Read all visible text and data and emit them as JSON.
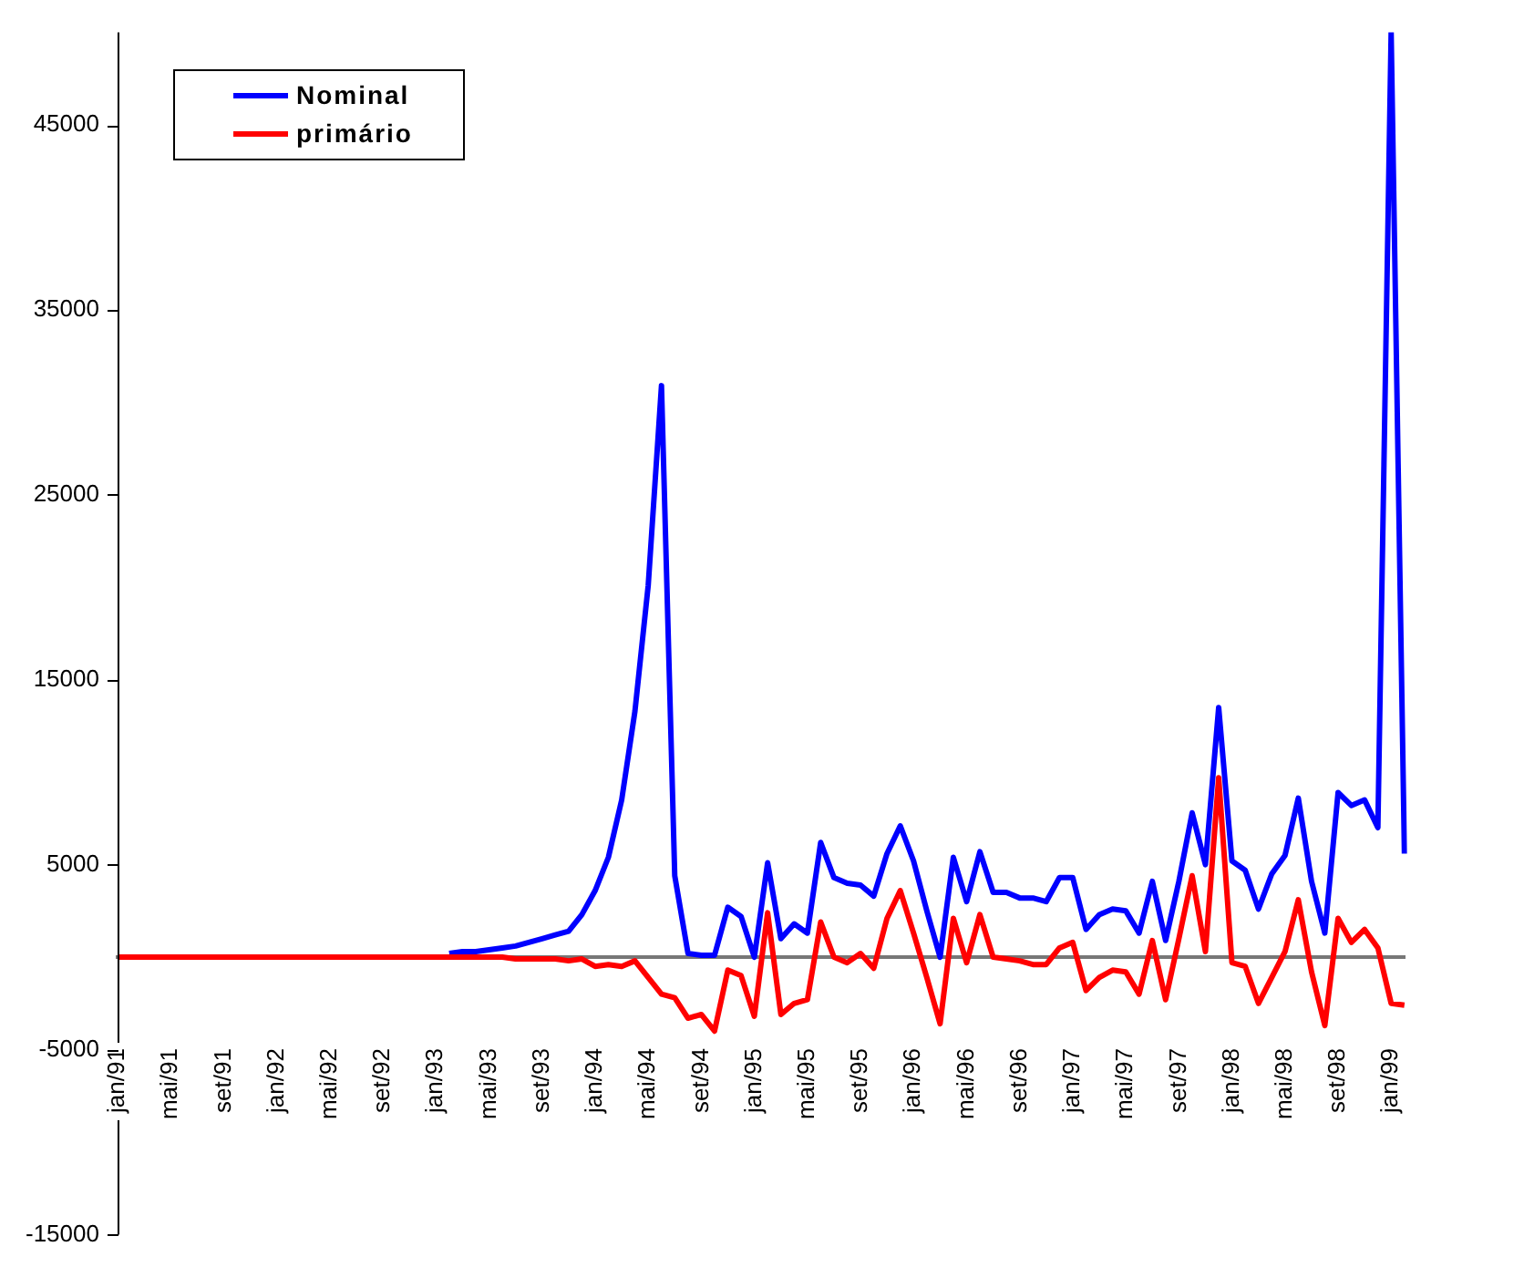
{
  "chart_data": {
    "type": "line",
    "categories": [
      "jan/91",
      null,
      null,
      null,
      "mai/91",
      null,
      null,
      null,
      "set/91",
      null,
      null,
      null,
      "jan/92",
      null,
      null,
      null,
      "mai/92",
      null,
      null,
      null,
      "set/92",
      null,
      null,
      null,
      "jan/93",
      null,
      null,
      null,
      "mai/93",
      null,
      null,
      null,
      "set/93",
      null,
      null,
      null,
      "jan/94",
      null,
      null,
      null,
      "mai/94",
      null,
      null,
      null,
      "set/94",
      null,
      null,
      null,
      "jan/95",
      null,
      null,
      null,
      "mai/95",
      null,
      null,
      null,
      "set/95",
      null,
      null,
      null,
      "jan/96",
      null,
      null,
      null,
      "mai/96",
      null,
      null,
      null,
      "set/96",
      null,
      null,
      null,
      "jan/97",
      null,
      null,
      null,
      "mai/97",
      null,
      null,
      null,
      "set/97",
      null,
      null,
      null,
      "jan/98",
      null,
      null,
      null,
      "mai/98",
      null,
      null,
      null,
      "set/98",
      null,
      null,
      null,
      "jan/99",
      null
    ],
    "series": [
      {
        "name": "Nominal",
        "color": "#0000ff",
        "values": [
          null,
          null,
          null,
          null,
          null,
          null,
          null,
          null,
          null,
          null,
          null,
          null,
          null,
          null,
          null,
          null,
          null,
          null,
          null,
          null,
          null,
          null,
          null,
          null,
          null,
          200,
          300,
          300,
          400,
          500,
          600,
          800,
          1000,
          1200,
          1400,
          2300,
          3600,
          5400,
          8500,
          13300,
          20100,
          30900,
          4400,
          200,
          100,
          100,
          2700,
          2200,
          0,
          5100,
          1000,
          1800,
          1300,
          6200,
          4300,
          4000,
          3900,
          3300,
          5600,
          7100,
          5200,
          2500,
          0,
          5400,
          3000,
          5700,
          3500,
          3500,
          3200,
          3200,
          3000,
          4300,
          4300,
          1500,
          2300,
          2600,
          2500,
          1300,
          4100,
          900,
          4100,
          7800,
          5000,
          13500,
          5200,
          4700,
          2600,
          4500,
          5500,
          8600,
          4100,
          1300,
          8900,
          8200,
          8500,
          7000,
          50000,
          5600
        ]
      },
      {
        "name": "primário",
        "color": "#ff0000",
        "values": [
          0,
          0,
          0,
          0,
          0,
          0,
          0,
          0,
          0,
          0,
          0,
          0,
          0,
          0,
          0,
          0,
          0,
          0,
          0,
          0,
          0,
          0,
          0,
          0,
          0,
          0,
          0,
          0,
          0,
          0,
          -100,
          -100,
          -100,
          -100,
          -200,
          -100,
          -500,
          -400,
          -500,
          -200,
          -1100,
          -2000,
          -2200,
          -3300,
          -3100,
          -4000,
          -700,
          -1000,
          -3200,
          2400,
          -3100,
          -2500,
          -2300,
          1900,
          0,
          -300,
          200,
          -600,
          2100,
          3600,
          1300,
          -1100,
          -3600,
          2100,
          -300,
          2300,
          0,
          -100,
          -200,
          -400,
          -400,
          500,
          800,
          -1800,
          -1100,
          -700,
          -800,
          -2000,
          900,
          -2300,
          1000,
          4400,
          300,
          9700,
          -300,
          -500,
          -2500,
          -1100,
          300,
          3100,
          -800,
          -3700,
          2100,
          800,
          1500,
          500,
          -2500,
          -2600
        ]
      }
    ],
    "ylim": [
      -15000,
      50000
    ],
    "yticks": [
      -15000,
      -5000,
      5000,
      15000,
      25000,
      35000,
      45000
    ],
    "grid": false,
    "legend": "top left",
    "marker": "none",
    "line_style": "solid"
  }
}
